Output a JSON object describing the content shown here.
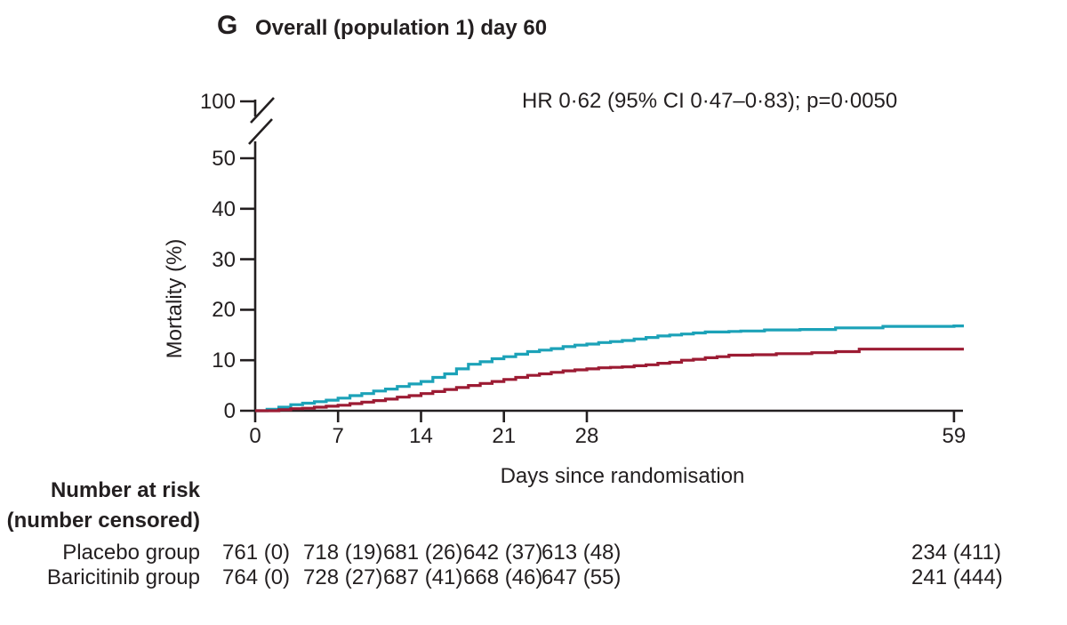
{
  "panel": {
    "letter": "G",
    "title": "Overall (population 1) day 60"
  },
  "annotation": {
    "hr_text": "HR 0·62 (95% CI 0·47–0·83); p=0·0050"
  },
  "axes": {
    "y_label": "Mortality (%)",
    "x_label": "Days since randomisation",
    "y_ticks": [
      0,
      10,
      20,
      30,
      40,
      50
    ],
    "y_break_label": "100",
    "x_ticks": [
      0,
      7,
      14,
      21,
      28,
      59
    ]
  },
  "risk_table": {
    "header_line1": "Number at risk",
    "header_line2": "(number censored)",
    "rows": [
      {
        "label": "Placebo group",
        "values": [
          "761 (0)",
          "718 (19)",
          "681 (26)",
          "642 (37)",
          "613 (48)",
          "234 (411)"
        ]
      },
      {
        "label": "Baricitinib group",
        "values": [
          "764 (0)",
          "728 (27)",
          "687 (41)",
          "668 (46)",
          "647 (55)",
          "241 (444)"
        ]
      }
    ]
  },
  "colors": {
    "placebo_teal": "#1CA2B8",
    "baricitinib_maroon": "#9C1B33",
    "axis_black": "#231f20"
  },
  "chart_data": {
    "type": "line",
    "variant": "kaplan_meier_step",
    "title": "Overall (population 1) day 60",
    "annotation": "HR 0·62 (95% CI 0·47–0·83); p=0·0050",
    "xlabel": "Days since randomisation",
    "ylabel": "Mortality (%)",
    "xlim": [
      0,
      59
    ],
    "ylim": [
      0,
      100
    ],
    "y_axis_break": {
      "between": [
        50,
        100
      ]
    },
    "x_ticks": [
      0,
      7,
      14,
      21,
      28,
      59
    ],
    "y_ticks": [
      0,
      10,
      20,
      30,
      40,
      50,
      100
    ],
    "grid": false,
    "legend_position": "none",
    "series": [
      {
        "name": "Placebo group",
        "color": "#1CA2B8",
        "step": "post",
        "points": [
          [
            0,
            0
          ],
          [
            1,
            0.3
          ],
          [
            2,
            0.7
          ],
          [
            3,
            1.2
          ],
          [
            4,
            1.5
          ],
          [
            5,
            1.8
          ],
          [
            6,
            2.1
          ],
          [
            7,
            2.5
          ],
          [
            8,
            3.0
          ],
          [
            9,
            3.4
          ],
          [
            10,
            3.9
          ],
          [
            11,
            4.3
          ],
          [
            12,
            4.8
          ],
          [
            13,
            5.3
          ],
          [
            14,
            5.8
          ],
          [
            15,
            6.6
          ],
          [
            16,
            7.3
          ],
          [
            17,
            8.3
          ],
          [
            18,
            9.2
          ],
          [
            19,
            9.7
          ],
          [
            20,
            10.3
          ],
          [
            21,
            10.7
          ],
          [
            22,
            11.2
          ],
          [
            23,
            11.7
          ],
          [
            24,
            12.0
          ],
          [
            25,
            12.3
          ],
          [
            26,
            12.7
          ],
          [
            27,
            13.0
          ],
          [
            28,
            13.2
          ],
          [
            29,
            13.5
          ],
          [
            30,
            13.7
          ],
          [
            31,
            13.9
          ],
          [
            32,
            14.2
          ],
          [
            33,
            14.5
          ],
          [
            34,
            14.8
          ],
          [
            35,
            15.0
          ],
          [
            36,
            15.2
          ],
          [
            37,
            15.4
          ],
          [
            38,
            15.6
          ],
          [
            40,
            15.7
          ],
          [
            41,
            15.8
          ],
          [
            43,
            16.0
          ],
          [
            46,
            16.1
          ],
          [
            49,
            16.4
          ],
          [
            53,
            16.7
          ],
          [
            59,
            16.8
          ]
        ]
      },
      {
        "name": "Baricitinib group",
        "color": "#9C1B33",
        "step": "post",
        "points": [
          [
            0,
            0
          ],
          [
            2,
            0.2
          ],
          [
            3,
            0.4
          ],
          [
            4,
            0.5
          ],
          [
            5,
            0.7
          ],
          [
            6,
            0.9
          ],
          [
            7,
            1.1
          ],
          [
            8,
            1.4
          ],
          [
            9,
            1.7
          ],
          [
            10,
            2.0
          ],
          [
            11,
            2.3
          ],
          [
            12,
            2.7
          ],
          [
            13,
            3.0
          ],
          [
            14,
            3.4
          ],
          [
            15,
            3.8
          ],
          [
            16,
            4.2
          ],
          [
            17,
            4.6
          ],
          [
            18,
            5.0
          ],
          [
            19,
            5.4
          ],
          [
            20,
            5.8
          ],
          [
            21,
            6.2
          ],
          [
            22,
            6.6
          ],
          [
            23,
            7.0
          ],
          [
            24,
            7.3
          ],
          [
            25,
            7.6
          ],
          [
            26,
            7.9
          ],
          [
            27,
            8.1
          ],
          [
            28,
            8.3
          ],
          [
            29,
            8.5
          ],
          [
            30,
            8.6
          ],
          [
            31,
            8.7
          ],
          [
            32,
            8.9
          ],
          [
            33,
            9.1
          ],
          [
            34,
            9.4
          ],
          [
            35,
            9.6
          ],
          [
            36,
            10.0
          ],
          [
            37,
            10.2
          ],
          [
            38,
            10.5
          ],
          [
            39,
            10.7
          ],
          [
            40,
            11.0
          ],
          [
            42,
            11.1
          ],
          [
            44,
            11.3
          ],
          [
            47,
            11.5
          ],
          [
            49,
            11.7
          ],
          [
            51,
            12.2
          ],
          [
            59,
            12.2
          ]
        ]
      }
    ],
    "number_at_risk": {
      "days": [
        0,
        7,
        14,
        21,
        28,
        59
      ],
      "placebo": [
        "761 (0)",
        "718 (19)",
        "681 (26)",
        "642 (37)",
        "613 (48)",
        "234 (411)"
      ],
      "baricitinib": [
        "764 (0)",
        "728 (27)",
        "687 (41)",
        "668 (46)",
        "647 (55)",
        "241 (444)"
      ]
    }
  }
}
